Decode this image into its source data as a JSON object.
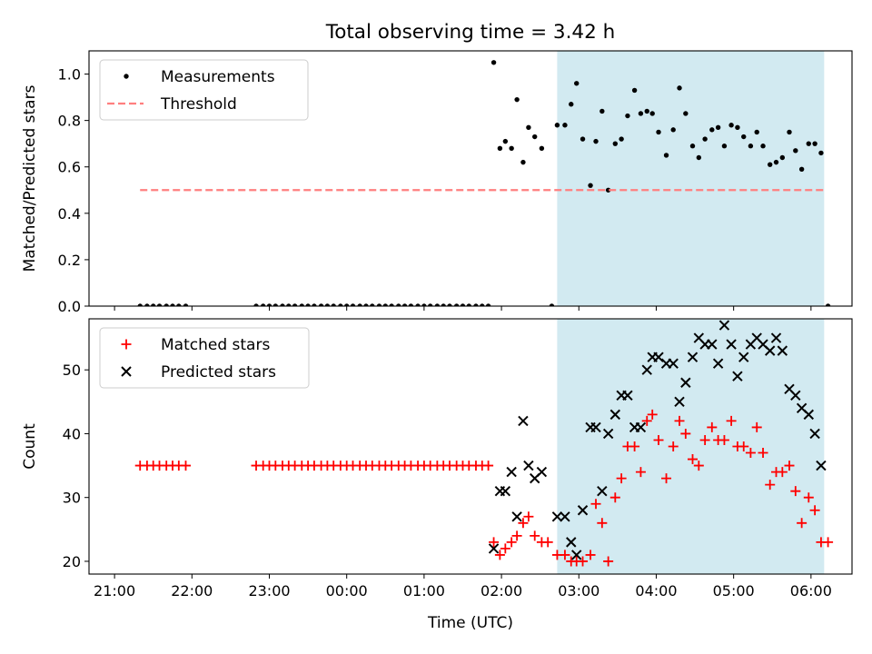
{
  "figure": {
    "title": "Total observing time = 3.42 h"
  },
  "chart_data": [
    {
      "type": "scatter",
      "xlabel": "",
      "ylabel": "Matched/Predicted stars",
      "xlim": [
        -0.33,
        9.53
      ],
      "ylim": [
        0.0,
        1.1
      ],
      "x_unit": "hours since 21:00 UTC",
      "yticks": [
        0.0,
        0.2,
        0.4,
        0.6,
        0.8,
        1.0
      ],
      "ytick_labels": [
        "0.0",
        "0.2",
        "0.4",
        "0.6",
        "0.8",
        "1.0"
      ],
      "span": {
        "x0": 5.72,
        "x1": 9.17,
        "color": "#add8e6"
      },
      "grid": false,
      "legend_position": "upper left",
      "series": [
        {
          "name": "Measurements",
          "marker": "dot",
          "color": "#000000",
          "points": [
            [
              0.33,
              0
            ],
            [
              0.42,
              0
            ],
            [
              0.5,
              0
            ],
            [
              0.58,
              0
            ],
            [
              0.67,
              0
            ],
            [
              0.75,
              0
            ],
            [
              0.83,
              0
            ],
            [
              0.92,
              0
            ],
            [
              1.83,
              0
            ],
            [
              1.92,
              0
            ],
            [
              2.0,
              0
            ],
            [
              2.08,
              0
            ],
            [
              2.17,
              0
            ],
            [
              2.25,
              0
            ],
            [
              2.33,
              0
            ],
            [
              2.42,
              0
            ],
            [
              2.5,
              0
            ],
            [
              2.58,
              0
            ],
            [
              2.67,
              0
            ],
            [
              2.75,
              0
            ],
            [
              2.83,
              0
            ],
            [
              2.92,
              0
            ],
            [
              3.0,
              0
            ],
            [
              3.08,
              0
            ],
            [
              3.17,
              0
            ],
            [
              3.25,
              0
            ],
            [
              3.33,
              0
            ],
            [
              3.42,
              0
            ],
            [
              3.5,
              0
            ],
            [
              3.58,
              0
            ],
            [
              3.67,
              0
            ],
            [
              3.75,
              0
            ],
            [
              3.83,
              0
            ],
            [
              3.92,
              0
            ],
            [
              4.0,
              0
            ],
            [
              4.08,
              0
            ],
            [
              4.17,
              0
            ],
            [
              4.25,
              0
            ],
            [
              4.33,
              0
            ],
            [
              4.42,
              0
            ],
            [
              4.5,
              0
            ],
            [
              4.58,
              0
            ],
            [
              4.67,
              0
            ],
            [
              4.75,
              0
            ],
            [
              4.83,
              0
            ],
            [
              4.9,
              1.05
            ],
            [
              4.98,
              0.68
            ],
            [
              5.05,
              0.71
            ],
            [
              5.13,
              0.68
            ],
            [
              5.2,
              0.89
            ],
            [
              5.28,
              0.62
            ],
            [
              5.35,
              0.77
            ],
            [
              5.43,
              0.73
            ],
            [
              5.52,
              0.68
            ],
            [
              5.65,
              0.0
            ],
            [
              5.72,
              0.78
            ],
            [
              5.82,
              0.78
            ],
            [
              5.9,
              0.87
            ],
            [
              5.97,
              0.96
            ],
            [
              6.05,
              0.72
            ],
            [
              6.15,
              0.52
            ],
            [
              6.22,
              0.71
            ],
            [
              6.3,
              0.84
            ],
            [
              6.38,
              0.5
            ],
            [
              6.47,
              0.7
            ],
            [
              6.55,
              0.72
            ],
            [
              6.63,
              0.82
            ],
            [
              6.72,
              0.93
            ],
            [
              6.8,
              0.83
            ],
            [
              6.88,
              0.84
            ],
            [
              6.95,
              0.83
            ],
            [
              7.03,
              0.75
            ],
            [
              7.13,
              0.65
            ],
            [
              7.22,
              0.76
            ],
            [
              7.3,
              0.94
            ],
            [
              7.38,
              0.83
            ],
            [
              7.47,
              0.69
            ],
            [
              7.55,
              0.64
            ],
            [
              7.63,
              0.72
            ],
            [
              7.72,
              0.76
            ],
            [
              7.8,
              0.77
            ],
            [
              7.88,
              0.69
            ],
            [
              7.97,
              0.78
            ],
            [
              8.05,
              0.77
            ],
            [
              8.13,
              0.73
            ],
            [
              8.22,
              0.69
            ],
            [
              8.3,
              0.75
            ],
            [
              8.38,
              0.69
            ],
            [
              8.47,
              0.61
            ],
            [
              8.55,
              0.62
            ],
            [
              8.63,
              0.64
            ],
            [
              8.72,
              0.75
            ],
            [
              8.8,
              0.67
            ],
            [
              8.88,
              0.59
            ],
            [
              8.97,
              0.7
            ],
            [
              9.05,
              0.7
            ],
            [
              9.13,
              0.66
            ],
            [
              9.22,
              0.0
            ]
          ]
        },
        {
          "name": "Threshold",
          "kind": "dashed-line",
          "color": "#ff7f7f",
          "points": [
            [
              0.33,
              0.5
            ],
            [
              9.17,
              0.5
            ]
          ]
        }
      ]
    },
    {
      "type": "scatter",
      "xlabel": "Time (UTC)",
      "ylabel": "Count",
      "xlim": [
        -0.33,
        9.53
      ],
      "ylim": [
        18,
        58
      ],
      "x_unit": "hours since 21:00 UTC",
      "xticks": [
        0,
        1,
        2,
        3,
        4,
        5,
        6,
        7,
        8,
        9
      ],
      "xtick_labels": [
        "21:00",
        "22:00",
        "23:00",
        "00:00",
        "01:00",
        "02:00",
        "03:00",
        "04:00",
        "05:00",
        "06:00"
      ],
      "yticks": [
        20,
        30,
        40,
        50
      ],
      "ytick_labels": [
        "20",
        "30",
        "40",
        "50"
      ],
      "span": {
        "x0": 5.72,
        "x1": 9.17,
        "color": "#add8e6"
      },
      "grid": false,
      "legend_position": "upper left",
      "series": [
        {
          "name": "Matched stars",
          "marker": "plus",
          "color": "#ff0000",
          "points": [
            [
              0.33,
              35
            ],
            [
              0.42,
              35
            ],
            [
              0.5,
              35
            ],
            [
              0.58,
              35
            ],
            [
              0.67,
              35
            ],
            [
              0.75,
              35
            ],
            [
              0.83,
              35
            ],
            [
              0.92,
              35
            ],
            [
              1.83,
              35
            ],
            [
              1.92,
              35
            ],
            [
              2.0,
              35
            ],
            [
              2.08,
              35
            ],
            [
              2.17,
              35
            ],
            [
              2.25,
              35
            ],
            [
              2.33,
              35
            ],
            [
              2.42,
              35
            ],
            [
              2.5,
              35
            ],
            [
              2.58,
              35
            ],
            [
              2.67,
              35
            ],
            [
              2.75,
              35
            ],
            [
              2.83,
              35
            ],
            [
              2.92,
              35
            ],
            [
              3.0,
              35
            ],
            [
              3.08,
              35
            ],
            [
              3.17,
              35
            ],
            [
              3.25,
              35
            ],
            [
              3.33,
              35
            ],
            [
              3.42,
              35
            ],
            [
              3.5,
              35
            ],
            [
              3.58,
              35
            ],
            [
              3.67,
              35
            ],
            [
              3.75,
              35
            ],
            [
              3.83,
              35
            ],
            [
              3.92,
              35
            ],
            [
              4.0,
              35
            ],
            [
              4.08,
              35
            ],
            [
              4.17,
              35
            ],
            [
              4.25,
              35
            ],
            [
              4.33,
              35
            ],
            [
              4.42,
              35
            ],
            [
              4.5,
              35
            ],
            [
              4.58,
              35
            ],
            [
              4.67,
              35
            ],
            [
              4.75,
              35
            ],
            [
              4.83,
              35
            ],
            [
              4.9,
              23
            ],
            [
              4.98,
              21
            ],
            [
              5.05,
              22
            ],
            [
              5.13,
              23
            ],
            [
              5.2,
              24
            ],
            [
              5.28,
              26
            ],
            [
              5.35,
              27
            ],
            [
              5.43,
              24
            ],
            [
              5.52,
              23
            ],
            [
              5.6,
              23
            ],
            [
              5.72,
              21
            ],
            [
              5.82,
              21
            ],
            [
              5.9,
              20
            ],
            [
              5.97,
              20
            ],
            [
              6.05,
              20
            ],
            [
              6.15,
              21
            ],
            [
              6.22,
              29
            ],
            [
              6.3,
              26
            ],
            [
              6.38,
              20
            ],
            [
              6.47,
              30
            ],
            [
              6.55,
              33
            ],
            [
              6.63,
              38
            ],
            [
              6.72,
              38
            ],
            [
              6.8,
              34
            ],
            [
              6.88,
              42
            ],
            [
              6.95,
              43
            ],
            [
              7.03,
              39
            ],
            [
              7.13,
              33
            ],
            [
              7.22,
              38
            ],
            [
              7.3,
              42
            ],
            [
              7.38,
              40
            ],
            [
              7.47,
              36
            ],
            [
              7.55,
              35
            ],
            [
              7.63,
              39
            ],
            [
              7.72,
              41
            ],
            [
              7.8,
              39
            ],
            [
              7.88,
              39
            ],
            [
              7.97,
              42
            ],
            [
              8.05,
              38
            ],
            [
              8.13,
              38
            ],
            [
              8.22,
              37
            ],
            [
              8.3,
              41
            ],
            [
              8.38,
              37
            ],
            [
              8.47,
              32
            ],
            [
              8.55,
              34
            ],
            [
              8.63,
              34
            ],
            [
              8.72,
              35
            ],
            [
              8.8,
              31
            ],
            [
              8.88,
              26
            ],
            [
              8.97,
              30
            ],
            [
              9.05,
              28
            ],
            [
              9.13,
              23
            ],
            [
              9.22,
              23
            ]
          ]
        },
        {
          "name": "Predicted stars",
          "marker": "x",
          "color": "#000000",
          "points": [
            [
              4.9,
              22
            ],
            [
              4.98,
              31
            ],
            [
              5.05,
              31
            ],
            [
              5.13,
              34
            ],
            [
              5.2,
              27
            ],
            [
              5.28,
              42
            ],
            [
              5.35,
              35
            ],
            [
              5.43,
              33
            ],
            [
              5.52,
              34
            ],
            [
              5.72,
              27
            ],
            [
              5.82,
              27
            ],
            [
              5.9,
              23
            ],
            [
              5.97,
              21
            ],
            [
              6.05,
              28
            ],
            [
              6.15,
              41
            ],
            [
              6.22,
              41
            ],
            [
              6.3,
              31
            ],
            [
              6.38,
              40
            ],
            [
              6.47,
              43
            ],
            [
              6.55,
              46
            ],
            [
              6.63,
              46
            ],
            [
              6.72,
              41
            ],
            [
              6.8,
              41
            ],
            [
              6.88,
              50
            ],
            [
              6.95,
              52
            ],
            [
              7.03,
              52
            ],
            [
              7.13,
              51
            ],
            [
              7.22,
              51
            ],
            [
              7.3,
              45
            ],
            [
              7.38,
              48
            ],
            [
              7.47,
              52
            ],
            [
              7.55,
              55
            ],
            [
              7.63,
              54
            ],
            [
              7.72,
              54
            ],
            [
              7.8,
              51
            ],
            [
              7.88,
              57
            ],
            [
              7.97,
              54
            ],
            [
              8.05,
              49
            ],
            [
              8.13,
              52
            ],
            [
              8.22,
              54
            ],
            [
              8.3,
              55
            ],
            [
              8.38,
              54
            ],
            [
              8.47,
              53
            ],
            [
              8.55,
              55
            ],
            [
              8.63,
              53
            ],
            [
              8.72,
              47
            ],
            [
              8.8,
              46
            ],
            [
              8.88,
              44
            ],
            [
              8.97,
              43
            ],
            [
              9.05,
              40
            ],
            [
              9.13,
              35
            ]
          ]
        }
      ]
    }
  ]
}
